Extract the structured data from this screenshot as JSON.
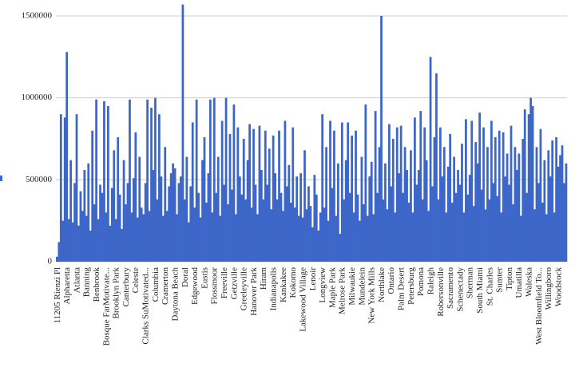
{
  "chart_data": {
    "type": "bar",
    "color": "#3d66c9",
    "grid": true,
    "ylim": [
      0,
      1500000
    ],
    "yticks": [
      0,
      500000,
      1000000,
      1500000
    ],
    "categories": [
      "11205 Rienzi Pl",
      null,
      null,
      null,
      null,
      "Alpharetta",
      null,
      null,
      null,
      null,
      "Atlanta",
      null,
      null,
      null,
      null,
      "Banning",
      null,
      null,
      null,
      null,
      "Benbrook",
      null,
      null,
      null,
      null,
      "Bosque FarMotivate...",
      null,
      null,
      null,
      null,
      "Brooklyn Park",
      null,
      null,
      null,
      null,
      "Canterbury",
      null,
      null,
      null,
      null,
      "Celeste",
      null,
      null,
      null,
      null,
      "Clarks SuMotivated...",
      null,
      null,
      null,
      null,
      "Columbia",
      null,
      null,
      null,
      null,
      "Cramerton",
      null,
      null,
      null,
      null,
      "Daytona Beach",
      null,
      null,
      null,
      null,
      "Doral",
      null,
      null,
      null,
      null,
      "Edgewood",
      null,
      null,
      null,
      null,
      "Eustis",
      null,
      null,
      null,
      null,
      "Flossmoor",
      null,
      null,
      null,
      null,
      "Freeville",
      null,
      null,
      null,
      null,
      "Getzville",
      null,
      null,
      null,
      null,
      "Greeleyville",
      null,
      null,
      null,
      null,
      "Hanover Park",
      null,
      null,
      null,
      null,
      "Hiram",
      null,
      null,
      null,
      null,
      "Indianapolis",
      null,
      null,
      null,
      null,
      "Kankakee",
      null,
      null,
      null,
      null,
      "Kokomo",
      null,
      null,
      null,
      null,
      "Lakewood Village",
      null,
      null,
      null,
      null,
      "Lenoir",
      null,
      null,
      null,
      null,
      "Longview",
      null,
      null,
      null,
      null,
      "Maple Park",
      null,
      null,
      null,
      null,
      "Melrose Park",
      null,
      null,
      null,
      null,
      "Milwaukie",
      null,
      null,
      null,
      null,
      "Mundelein",
      null,
      null,
      null,
      null,
      "New York Mills",
      null,
      null,
      null,
      null,
      "Northlake",
      null,
      null,
      null,
      null,
      "Ontario",
      null,
      null,
      null,
      null,
      "Palm Desert",
      null,
      null,
      null,
      null,
      "Petersburg",
      null,
      null,
      null,
      null,
      "Pomona",
      null,
      null,
      null,
      null,
      "Raleigh",
      null,
      null,
      null,
      null,
      "Robersonville",
      null,
      null,
      null,
      null,
      "Sacramento",
      null,
      null,
      null,
      null,
      "Schenectady",
      null,
      null,
      null,
      null,
      "Sherman",
      null,
      null,
      null,
      null,
      "South Miami",
      null,
      null,
      null,
      null,
      "St. Charles",
      null,
      null,
      null,
      null,
      "Sumter",
      null,
      null,
      null,
      null,
      "Tipton",
      null,
      null,
      null,
      null,
      "Umatilla",
      null,
      null,
      null,
      null,
      "Waleska",
      null,
      null,
      null,
      null,
      "West Bloomfield To...",
      null,
      null,
      null,
      null,
      "Willingboro",
      null,
      null,
      null,
      null,
      "Woodstock",
      null,
      null,
      null,
      null
    ],
    "values": [
      30000,
      120000,
      900000,
      250000,
      880000,
      1280000,
      260000,
      620000,
      240000,
      480000,
      900000,
      220000,
      430000,
      310000,
      560000,
      280000,
      600000,
      190000,
      800000,
      350000,
      990000,
      260000,
      470000,
      420000,
      980000,
      300000,
      950000,
      220000,
      450000,
      680000,
      260000,
      760000,
      410000,
      200000,
      620000,
      350000,
      480000,
      990000,
      300000,
      510000,
      790000,
      270000,
      640000,
      330000,
      290000,
      480000,
      990000,
      310000,
      940000,
      560000,
      1000000,
      380000,
      900000,
      520000,
      280000,
      700000,
      310000,
      460000,
      540000,
      600000,
      570000,
      290000,
      480000,
      520000,
      1570000,
      380000,
      640000,
      240000,
      460000,
      850000,
      330000,
      990000,
      420000,
      270000,
      620000,
      760000,
      360000,
      540000,
      990000,
      300000,
      1000000,
      420000,
      640000,
      280000,
      860000,
      470000,
      1000000,
      350000,
      780000,
      440000,
      960000,
      290000,
      820000,
      520000,
      410000,
      750000,
      380000,
      620000,
      840000,
      330000,
      810000,
      470000,
      290000,
      830000,
      560000,
      380000,
      800000,
      470000,
      690000,
      320000,
      770000,
      540000,
      380000,
      800000,
      420000,
      310000,
      860000,
      460000,
      590000,
      360000,
      820000,
      330000,
      520000,
      280000,
      540000,
      270000,
      680000,
      320000,
      460000,
      340000,
      210000,
      530000,
      410000,
      190000,
      300000,
      900000,
      330000,
      700000,
      250000,
      860000,
      450000,
      800000,
      280000,
      600000,
      170000,
      850000,
      380000,
      620000,
      850000,
      420000,
      770000,
      300000,
      800000,
      410000,
      250000,
      640000,
      350000,
      960000,
      280000,
      520000,
      610000,
      290000,
      920000,
      420000,
      700000,
      1500000,
      380000,
      600000,
      320000,
      840000,
      460000,
      750000,
      300000,
      820000,
      540000,
      830000,
      420000,
      700000,
      560000,
      360000,
      680000,
      300000,
      880000,
      470000,
      560000,
      920000,
      380000,
      820000,
      620000,
      310000,
      1250000,
      460000,
      760000,
      1150000,
      380000,
      820000,
      520000,
      700000,
      300000,
      580000,
      780000,
      360000,
      640000,
      420000,
      560000,
      470000,
      720000,
      300000,
      870000,
      410000,
      530000,
      860000,
      340000,
      730000,
      600000,
      910000,
      440000,
      820000,
      320000,
      700000,
      380000,
      860000,
      480000,
      760000,
      400000,
      800000,
      300000,
      790000,
      520000,
      660000,
      470000,
      830000,
      350000,
      700000,
      560000,
      660000,
      280000,
      750000,
      930000,
      420000,
      900000,
      1000000,
      950000,
      320000,
      700000,
      480000,
      810000,
      360000,
      620000,
      290000,
      680000,
      520000,
      740000,
      300000,
      760000,
      580000,
      650000,
      710000,
      480000,
      600000
    ]
  }
}
